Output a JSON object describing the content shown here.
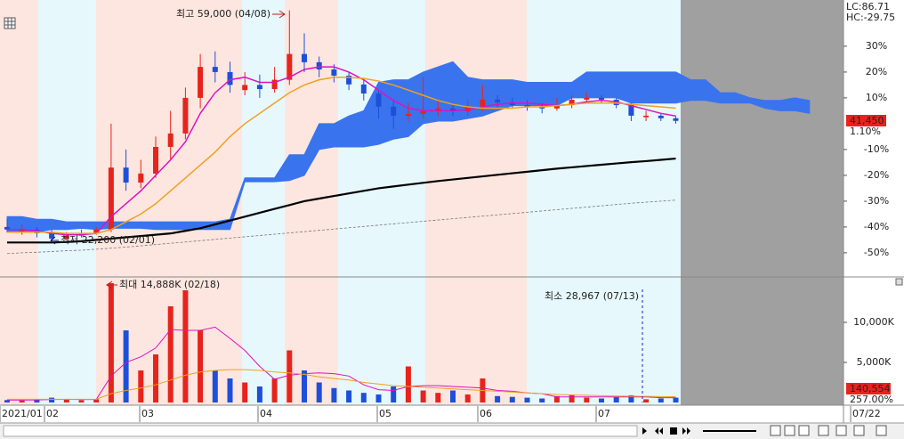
{
  "chart_data": {
    "type": "candlestick",
    "ylim": [
      -59,
      47.9
    ],
    "yticks": [
      {
        "value": 30,
        "label": "30%"
      },
      {
        "value": 20,
        "label": "20%"
      },
      {
        "value": 10,
        "label": "10%"
      },
      {
        "value": -10,
        "label": "-10%"
      },
      {
        "value": -20,
        "label": "-20%"
      },
      {
        "value": -30,
        "label": "-30%"
      },
      {
        "value": -40,
        "label": "-40%"
      },
      {
        "value": -50,
        "label": "-50%"
      }
    ],
    "x_labels": [
      "2021/01",
      "02",
      "03",
      "04",
      "05",
      "06",
      "07",
      "07/22"
    ],
    "indicators": [
      "LC:86.71",
      "HC:-29.75"
    ],
    "annotations": {
      "high": "최고 59,000 (04/08)",
      "low": "최저 22,200 (02/01)",
      "vol_max": "최대 14,888K (02/18)",
      "vol_min": "최소 28,967 (07/13)"
    },
    "price_tag": "41,450",
    "change_tag": "1.10%",
    "volume_tag": "140,554",
    "volume_ratio_tag": "257.00%",
    "up_color": "#e8231b",
    "down_color": "#1e4fd8",
    "ohlc": [
      [
        -40,
        -37,
        -42,
        -41
      ],
      [
        -42,
        -39,
        -43,
        -41
      ],
      [
        -41,
        -40,
        -44,
        -42.4
      ],
      [
        -42.4,
        -41,
        -45.9,
        -44.5
      ],
      [
        -44.5,
        -42,
        -45,
        -43.4
      ],
      [
        -43.4,
        -41,
        -44,
        -42.4
      ],
      [
        -42.4,
        -40,
        -43,
        -41
      ],
      [
        -41,
        0,
        -42,
        -17
      ],
      [
        -17,
        -10,
        -26,
        -22.8
      ],
      [
        -22.8,
        -14,
        -25,
        -19.3
      ],
      [
        -19.3,
        -5,
        -21,
        -9
      ],
      [
        -9,
        5,
        -14,
        -3.8
      ],
      [
        -3.8,
        14,
        -6,
        10
      ],
      [
        10,
        27,
        6,
        22
      ],
      [
        22,
        28,
        16,
        20
      ],
      [
        20,
        24,
        12,
        15
      ],
      [
        13,
        20,
        11,
        15
      ],
      [
        15,
        19,
        10,
        13.4
      ],
      [
        13.4,
        22,
        12,
        17
      ],
      [
        17,
        43.9,
        15,
        27
      ],
      [
        27,
        35,
        20,
        23.8
      ],
      [
        23.8,
        26,
        18,
        21
      ],
      [
        21,
        23,
        16,
        18.6
      ],
      [
        18.6,
        20,
        13,
        15.2
      ],
      [
        15.2,
        17,
        9,
        11.7
      ],
      [
        11.7,
        13,
        2,
        6.6
      ],
      [
        6.6,
        9,
        -2,
        3.1
      ],
      [
        3.1,
        8,
        1,
        3.8
      ],
      [
        3.8,
        18,
        2,
        4.8
      ],
      [
        4.8,
        9,
        3,
        5.9
      ],
      [
        5.9,
        8,
        3,
        4.8
      ],
      [
        4.8,
        9,
        3,
        6.6
      ],
      [
        6.6,
        15,
        5,
        9.3
      ],
      [
        9.3,
        11,
        6,
        8.3
      ],
      [
        8.3,
        10,
        6,
        7.2
      ],
      [
        7.2,
        9,
        5,
        6.6
      ],
      [
        6.6,
        8,
        4,
        5.9
      ],
      [
        5.9,
        10,
        5,
        7.2
      ],
      [
        7.2,
        11,
        6,
        9.3
      ],
      [
        9.3,
        12,
        8,
        10
      ],
      [
        10,
        11,
        8,
        9.3
      ],
      [
        9.3,
        10,
        6,
        7.2
      ],
      [
        7.2,
        8,
        1,
        3.1
      ],
      [
        2.5,
        5,
        1,
        3.1
      ],
      [
        3.1,
        4,
        1,
        2.1
      ],
      [
        2.1,
        3,
        0,
        1.1
      ]
    ],
    "lines": [
      {
        "color": "#e010c0",
        "width": 1.5,
        "values": [
          -41,
          -41,
          -41.5,
          -42.5,
          -43,
          -43,
          -42.5,
          -36,
          -31,
          -26,
          -20,
          -14,
          -7,
          4,
          12,
          17,
          18,
          16,
          16,
          18,
          21,
          22,
          22,
          20,
          17,
          13,
          9,
          6,
          5,
          5,
          5,
          5.5,
          6.5,
          7.5,
          8,
          8,
          7.5,
          7,
          7.5,
          8.5,
          9,
          8.5,
          7,
          5.5,
          4,
          3
        ]
      },
      {
        "color": "#f0a020",
        "width": 1.5,
        "values": [
          -42,
          -42,
          -42,
          -42,
          -42.5,
          -42.5,
          -42.5,
          -41,
          -38,
          -35,
          -31,
          -26,
          -21,
          -16,
          -11,
          -5,
          0,
          4,
          8,
          12,
          15,
          17,
          18,
          18,
          17.5,
          16.5,
          15,
          13,
          11,
          9,
          7.5,
          6.5,
          6,
          6,
          6,
          6.5,
          6.5,
          7,
          7.5,
          8,
          8,
          8,
          7.5,
          7,
          6.5,
          6
        ]
      },
      {
        "color": "#000000",
        "width": 2.2,
        "values": [
          -46,
          -46,
          -46,
          -46,
          -45.8,
          -45.5,
          -45,
          -44.5,
          -44,
          -43.5,
          -43,
          -42.5,
          -41.5,
          -40.5,
          -39,
          -37.5,
          -36,
          -34.5,
          -33,
          -31.5,
          -30,
          -29,
          -28,
          -27,
          -26,
          -25,
          -24.3,
          -23.6,
          -22.9,
          -22.2,
          -21.6,
          -21,
          -20.4,
          -19.8,
          -19.2,
          -18.6,
          -18,
          -17.4,
          -16.9,
          -16.4,
          -15.9,
          -15.4,
          -14.9,
          -14.5,
          -14,
          -13.5
        ]
      },
      {
        "color": "#777777",
        "width": 0.8,
        "dashed": true,
        "values": [
          -50.3,
          -50,
          -49.8,
          -49.5,
          -49.2,
          -49,
          -48.6,
          -48.2,
          -47.8,
          -47.3,
          -46.8,
          -46.3,
          -45.8,
          -45.3,
          -44.8,
          -44.3,
          -43.8,
          -43.3,
          -42.8,
          -42.3,
          -41.8,
          -41.3,
          -40.8,
          -40.3,
          -39.8,
          -39.3,
          -38.8,
          -38.3,
          -37.8,
          -37.3,
          -36.8,
          -36.3,
          -35.8,
          -35.3,
          -34.8,
          -34.3,
          -33.8,
          -33.3,
          -32.8,
          -32.3,
          -31.8,
          -31.3,
          -30.8,
          -30.4,
          -30,
          -29.6
        ]
      }
    ],
    "cloud": {
      "color": "#3a73ee",
      "upper": [
        -36,
        -36,
        -37,
        -37,
        -38,
        -38,
        -38,
        -38,
        -38,
        -38,
        -38,
        -38,
        -38,
        -38,
        -38,
        -37,
        -21,
        -21,
        -21,
        -12,
        -12,
        0,
        0,
        3,
        5,
        16,
        17,
        17,
        20,
        22,
        24,
        18,
        17,
        17,
        17,
        16,
        16,
        16,
        16,
        20,
        20,
        20,
        20,
        20,
        20,
        20,
        17,
        17,
        12,
        12,
        10,
        9,
        9,
        10,
        9
      ],
      "lower": [
        -42,
        -42,
        -42,
        -41,
        -41,
        -40.5,
        -41,
        -40.5,
        -40.5,
        -40.5,
        -41,
        -41,
        -41,
        -41,
        -41,
        -41,
        -22.5,
        -22.5,
        -22.5,
        -22,
        -20,
        -10,
        -9,
        -9,
        -9,
        -8,
        -6,
        -5,
        0,
        1,
        1,
        2,
        3,
        5,
        7,
        7,
        7,
        7,
        10,
        10,
        10,
        10,
        8,
        8,
        8,
        8,
        9,
        9,
        8,
        8,
        8,
        6,
        5,
        5,
        4
      ]
    },
    "volume": {
      "ylim": [
        0,
        15000
      ],
      "yticks": [
        {
          "value": 5000,
          "label": "5,000K"
        },
        {
          "value": 10000,
          "label": "10,000K"
        }
      ],
      "values": [
        300,
        250,
        400,
        600,
        350,
        300,
        400,
        14888,
        9000,
        4000,
        6000,
        12000,
        14000,
        9000,
        4000,
        3000,
        2500,
        2000,
        3000,
        6500,
        4000,
        2500,
        1800,
        1500,
        1200,
        1000,
        2000,
        4500,
        1500,
        1200,
        1500,
        1000,
        3000,
        800,
        700,
        600,
        500,
        800,
        1000,
        600,
        500,
        700,
        900,
        400,
        500,
        600
      ],
      "lines": [
        {
          "color": "#e010c0",
          "values": [
            300,
            300,
            320,
            380,
            390,
            380,
            380,
            3300,
            5000,
            5700,
            6800,
            9100,
            9000,
            9000,
            9400,
            8000,
            6500,
            4500,
            2900,
            3400,
            3600,
            3700,
            3600,
            3300,
            2200,
            1600,
            1500,
            2000,
            2100,
            2100,
            2000,
            1900,
            1800,
            1500,
            1400,
            1200,
            1100,
            700,
            700,
            700,
            700,
            700,
            700,
            700,
            600,
            600
          ]
        },
        {
          "color": "#f0a020",
          "values": [
            400,
            400,
            400,
            400,
            400,
            400,
            400,
            1100,
            1500,
            1800,
            2200,
            2800,
            3400,
            3800,
            4000,
            4100,
            4100,
            4000,
            3800,
            3700,
            3500,
            3200,
            3000,
            2800,
            2500,
            2300,
            2100,
            2000,
            1900,
            1800,
            1700,
            1600,
            1500,
            1400,
            1300,
            1200,
            1100,
            1000,
            950,
            900,
            850,
            800,
            780,
            760,
            740,
            720
          ]
        }
      ]
    }
  }
}
